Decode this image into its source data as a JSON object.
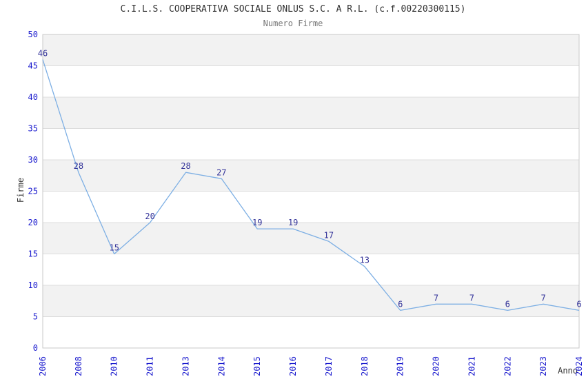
{
  "chart_data": {
    "type": "line",
    "title": "C.I.L.S. COOPERATIVA SOCIALE ONLUS S.C. A R.L. (c.f.00220300115)",
    "subtitle": "Numero Firme",
    "xlabel": "Anno",
    "ylabel": "Firme",
    "categories": [
      "2006",
      "2008",
      "2010",
      "2011",
      "2013",
      "2014",
      "2015",
      "2016",
      "2017",
      "2018",
      "2019",
      "2020",
      "2021",
      "2022",
      "2023",
      "2024"
    ],
    "values": [
      46,
      28,
      15,
      20,
      28,
      27,
      19,
      19,
      17,
      13,
      6,
      7,
      7,
      6,
      7,
      6
    ],
    "ylim": [
      0,
      50
    ],
    "ytick_step": 5,
    "grid": true,
    "alternating_bands": true,
    "point_labels_shown": true,
    "legend_position": "none"
  },
  "colors": {
    "background": "#ffffff",
    "title": "#2f2f2f",
    "subtitle": "#757575",
    "axis_title": "#333333",
    "tick_label": "#1a1ace",
    "point_label": "#333399",
    "line": "#7dafe4",
    "band_fill": "#f2f2f2",
    "gridline": "#dddddd",
    "plot_border": "#c8c8c8"
  }
}
